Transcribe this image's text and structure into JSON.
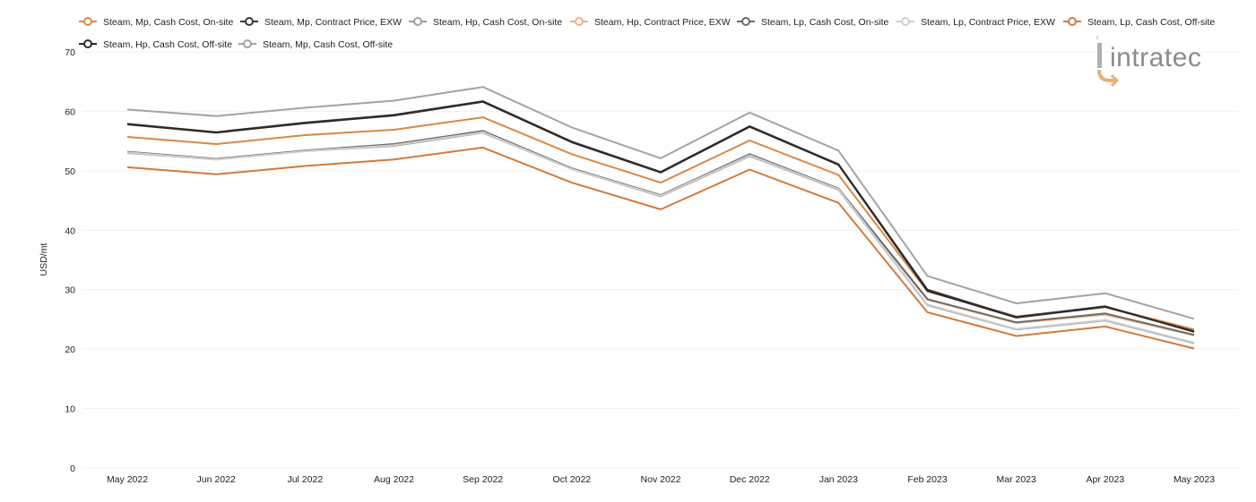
{
  "chart_data": {
    "type": "line",
    "title": "",
    "xlabel": "",
    "ylabel": "USD/mt",
    "ylim": [
      0,
      70
    ],
    "yticks": [
      0,
      10,
      20,
      30,
      40,
      50,
      60,
      70
    ],
    "grid": true,
    "legend_position": "top-left",
    "categories": [
      "May 2022",
      "Jun 2022",
      "Jul 2022",
      "Aug 2022",
      "Sep 2022",
      "Oct 2022",
      "Nov 2022",
      "Dec 2022",
      "Jan 2023",
      "Feb 2023",
      "Mar 2023",
      "Apr 2023",
      "May 2023"
    ],
    "series": [
      {
        "name": "Steam, Mp, Cash Cost, On-site",
        "color": "#d98843",
        "values": [
          55.7,
          54.5,
          56.0,
          56.9,
          59.0,
          52.8,
          48.0,
          55.1,
          49.3,
          29.7,
          25.5,
          27.1,
          23.3
        ]
      },
      {
        "name": "Steam, Mp, Contract Price, EXW",
        "color": "#3d3431",
        "values": [
          57.9,
          56.5,
          58.1,
          59.4,
          61.7,
          54.9,
          49.8,
          57.5,
          51.1,
          30.0,
          25.4,
          27.2,
          22.9
        ]
      },
      {
        "name": "Steam, Hp, Cash Cost, On-site",
        "color": "#9e9e9e",
        "values": [
          53.0,
          51.9,
          53.3,
          54.2,
          56.4,
          50.3,
          45.7,
          52.5,
          46.8,
          27.4,
          23.3,
          24.8,
          21.0
        ]
      },
      {
        "name": "Steam, Hp, Contract Price, EXW",
        "color": "#ebb27b",
        "values": [
          53.2,
          52.0,
          53.4,
          54.4,
          56.6,
          50.4,
          45.8,
          52.7,
          47.0,
          28.3,
          24.4,
          25.8,
          22.3
        ]
      },
      {
        "name": "Steam, Lp, Cash Cost, On-site",
        "color": "#6b6b6b",
        "values": [
          53.2,
          52.0,
          53.4,
          54.5,
          56.7,
          50.4,
          45.9,
          52.8,
          47.0,
          28.4,
          24.5,
          26.0,
          22.4
        ]
      },
      {
        "name": "Steam, Lp, Contract Price, EXW",
        "color": "#cfcfcf",
        "values": [
          53.1,
          51.9,
          53.3,
          54.3,
          56.5,
          50.3,
          45.8,
          52.6,
          46.9,
          27.5,
          23.4,
          24.9,
          21.1
        ]
      },
      {
        "name": "Steam, Lp, Cash Cost, Off-site",
        "color": "#d27a3b",
        "values": [
          50.6,
          49.4,
          50.8,
          51.9,
          53.9,
          48.0,
          43.5,
          50.2,
          44.6,
          26.2,
          22.2,
          23.8,
          20.1
        ]
      },
      {
        "name": "Steam, Hp, Cash Cost, Off-site",
        "color": "#2f2a28",
        "values": [
          57.8,
          56.4,
          58.0,
          59.3,
          61.6,
          54.8,
          49.7,
          57.4,
          51.0,
          29.8,
          25.3,
          27.1,
          23.0
        ]
      },
      {
        "name": "Steam, Mp, Cash Cost, Off-site",
        "color": "#a3a3a3",
        "values": [
          60.3,
          59.2,
          60.6,
          61.8,
          64.1,
          57.3,
          52.1,
          59.8,
          53.4,
          32.3,
          27.7,
          29.4,
          25.1
        ]
      }
    ]
  },
  "logo": {
    "text": "intratec"
  }
}
